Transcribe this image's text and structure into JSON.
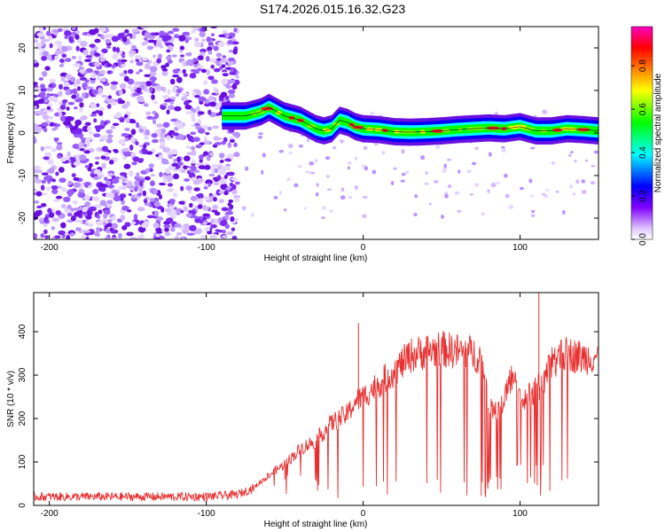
{
  "title": "S174.2026.015.16.32.G23",
  "chart_data": [
    {
      "type": "heatmap",
      "xlabel": "Height of straight line (km)",
      "ylabel": "Frequency (Hz)",
      "xlim": [
        -210,
        150
      ],
      "ylim": [
        -25,
        25
      ],
      "xticks": [
        -200,
        -100,
        0,
        100
      ],
      "yticks": [
        -20,
        -10,
        0,
        10,
        20
      ],
      "colorbar": {
        "label": "Normalized spectral amplitude",
        "range": [
          0,
          1
        ],
        "ticks": [
          "0.0",
          "0.2",
          "0.4",
          "0.6",
          "0.8"
        ],
        "colormap": [
          "#ffffff",
          "#8000ff",
          "#0000ff",
          "#00ffff",
          "#00ff00",
          "#ffff00",
          "#ff8000",
          "#ff0000",
          "#ff00ff"
        ]
      },
      "noise_region_x": [
        -210,
        -80
      ],
      "signal_ridge": {
        "x": [
          -90,
          -75,
          -65,
          -60,
          -55,
          -50,
          -45,
          -40,
          -35,
          -30,
          -25,
          -20,
          -15,
          -10,
          -5,
          0,
          10,
          20,
          30,
          40,
          50,
          60,
          70,
          80,
          90,
          100,
          110,
          120,
          130,
          140,
          150
        ],
        "freq_hz": [
          4,
          4,
          5,
          6,
          5,
          4,
          3.5,
          3,
          2,
          1,
          0.5,
          1,
          3,
          2.5,
          1.5,
          1,
          0.8,
          0.3,
          0.2,
          0.3,
          0.5,
          0.8,
          1,
          1.2,
          1,
          1.5,
          0.5,
          0.5,
          1,
          0.8,
          0.5
        ]
      }
    },
    {
      "type": "line",
      "xlabel": "Height of straight line (km)",
      "ylabel": "SNR (10 * v/v)",
      "xlim": [
        -210,
        150
      ],
      "ylim": [
        0,
        490
      ],
      "xticks": [
        -200,
        -100,
        0,
        100
      ],
      "yticks": [
        0,
        100,
        200,
        300,
        400
      ],
      "color": "#e83030",
      "series": [
        {
          "x": [
            -210,
            -100,
            -80,
            -70,
            -60,
            -50,
            -40,
            -30,
            -20,
            -10,
            -5,
            0,
            10,
            20,
            30,
            40,
            50,
            60,
            70,
            75,
            80,
            85,
            90,
            95,
            100,
            105,
            110,
            115,
            120,
            130,
            140,
            150
          ],
          "values": [
            20,
            20,
            25,
            40,
            70,
            95,
            130,
            150,
            190,
            210,
            240,
            250,
            280,
            310,
            345,
            355,
            360,
            355,
            350,
            340,
            240,
            210,
            250,
            300,
            240,
            250,
            270,
            280,
            330,
            350,
            340,
            345
          ]
        }
      ]
    }
  ]
}
